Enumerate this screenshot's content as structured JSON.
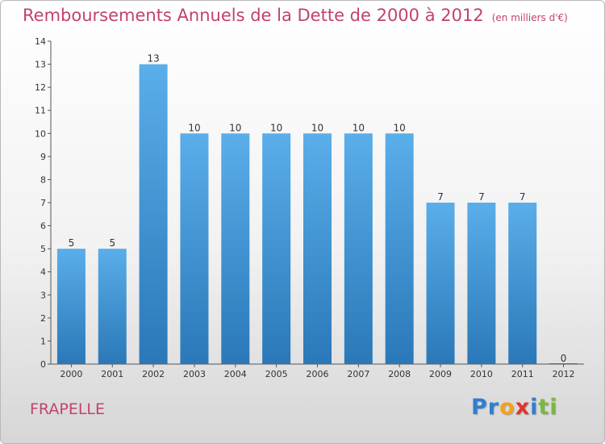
{
  "chart_data": {
    "type": "bar",
    "title": "Remboursements Annuels de la Dette de 2000 à 2012",
    "unit_note": "(en milliers d'€)",
    "categories": [
      "2000",
      "2001",
      "2002",
      "2003",
      "2004",
      "2005",
      "2006",
      "2007",
      "2008",
      "2009",
      "2010",
      "2011",
      "2012"
    ],
    "values": [
      5,
      5,
      13,
      10,
      10,
      10,
      10,
      10,
      10,
      7,
      7,
      7,
      0
    ],
    "value_labels": [
      "5",
      "5",
      "13",
      "10",
      "10",
      "10",
      "10",
      "10",
      "10",
      "7",
      "7",
      "7",
      "0"
    ],
    "ylim": [
      0,
      14
    ],
    "yticks": [
      0,
      1,
      2,
      3,
      4,
      5,
      6,
      7,
      8,
      9,
      10,
      11,
      12,
      13,
      14
    ],
    "ytick_labels": [
      "0",
      "1",
      "2",
      "3",
      "4",
      "5",
      "6",
      "7",
      "8",
      "9",
      "10",
      "11",
      "12",
      "13",
      "14"
    ],
    "bar_color_light": "#5aaeea",
    "bar_color_dark": "#2a78b8",
    "title_color": "#c2426f"
  },
  "footer": {
    "commune": "FRAPELLE",
    "logo_letters": [
      {
        "char": "P",
        "color": "#2f7fd0"
      },
      {
        "char": "r",
        "color": "#2f7fd0"
      },
      {
        "char": "o",
        "color": "#f2a21b"
      },
      {
        "char": "x",
        "color": "#e3342f"
      },
      {
        "char": "i",
        "color": "#2f7fd0"
      },
      {
        "char": "t",
        "color": "#7ab93c"
      },
      {
        "char": "i",
        "color": "#7ab93c"
      }
    ]
  }
}
